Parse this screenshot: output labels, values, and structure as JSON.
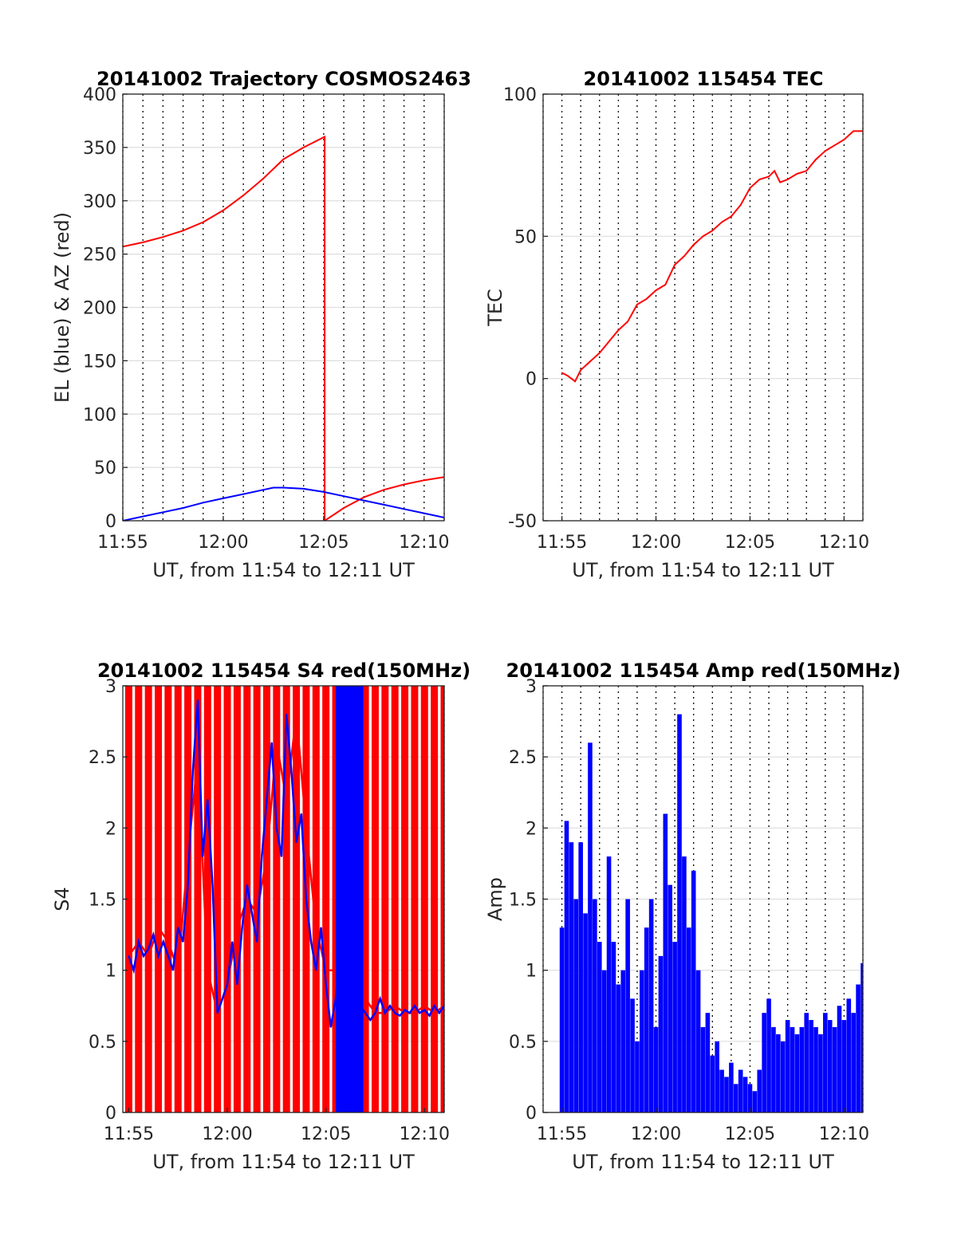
{
  "chart_data": [
    {
      "type": "line",
      "title": "20141002 Trajectory COSMOS2463",
      "xlabel": "UT, from 11:54 to 12:11 UT",
      "ylabel": "EL (blue) & AZ (red)",
      "x_unit": "minutes after 11:54 UT",
      "xlim": [
        1,
        17
      ],
      "ylim": [
        0,
        400
      ],
      "xticks": [
        {
          "value": 1,
          "label": "11:55"
        },
        {
          "value": 6,
          "label": "12:00"
        },
        {
          "value": 11,
          "label": "12:05"
        },
        {
          "value": 16,
          "label": "12:10"
        }
      ],
      "yticks": [
        0,
        50,
        100,
        150,
        200,
        250,
        300,
        350,
        400
      ],
      "grid": true,
      "series": [
        {
          "name": "AZ",
          "color": "#ff0000",
          "x": [
            1,
            2,
            3,
            4,
            5,
            6,
            7,
            8,
            9,
            10,
            11.05,
            11.05,
            12,
            13,
            14,
            15,
            16,
            17
          ],
          "y": [
            257,
            261,
            266,
            272,
            280,
            291,
            305,
            321,
            339,
            350,
            360,
            0,
            12,
            22,
            29,
            34,
            38,
            41
          ]
        },
        {
          "name": "EL",
          "color": "#0000ff",
          "x": [
            1,
            2,
            3,
            4,
            5,
            6,
            7,
            8,
            8.5,
            9,
            10,
            11,
            12,
            13,
            14,
            15,
            16,
            17
          ],
          "y": [
            0,
            4,
            8,
            12,
            17,
            21,
            25,
            29,
            31,
            31,
            30,
            27,
            23,
            19,
            15,
            11,
            7,
            3
          ]
        }
      ]
    },
    {
      "type": "line",
      "title": "20141002 115454 TEC",
      "xlabel": "UT, from 11:54 to 12:11 UT",
      "ylabel": "TEC",
      "x_unit": "minutes after 11:54 UT",
      "xlim": [
        0,
        17
      ],
      "ylim": [
        -50,
        100
      ],
      "xticks": [
        {
          "value": 1,
          "label": "11:55"
        },
        {
          "value": 6,
          "label": "12:00"
        },
        {
          "value": 11,
          "label": "12:05"
        },
        {
          "value": 16,
          "label": "12:10"
        }
      ],
      "yticks": [
        -50,
        0,
        50,
        100
      ],
      "grid": true,
      "series": [
        {
          "name": "TEC",
          "color": "#ff0000",
          "x": [
            1,
            1.3,
            1.5,
            1.7,
            2,
            2.5,
            3,
            3.5,
            4,
            4.5,
            5,
            5.5,
            6,
            6.5,
            7,
            7.5,
            8,
            8.5,
            9,
            9.5,
            10,
            10.5,
            11,
            11.5,
            12,
            12.3,
            12.6,
            13,
            13.5,
            14,
            14.5,
            15,
            15.5,
            16,
            16.5,
            17
          ],
          "y": [
            2,
            1,
            0,
            -1,
            3,
            6,
            9,
            13,
            17,
            20,
            26,
            28,
            31,
            33,
            40,
            43,
            47,
            50,
            52,
            55,
            57,
            61,
            67,
            70,
            71,
            73,
            69,
            70,
            72,
            73,
            77,
            80,
            82,
            84,
            87,
            87
          ]
        }
      ]
    },
    {
      "type": "line",
      "title": "20141002 115454 S4 red(150MHz)",
      "xlabel": "UT, from 11:54 to 12:11 UT",
      "ylabel": "S4",
      "x_unit": "minutes after 11:54 UT",
      "xlim": [
        0.7,
        17
      ],
      "ylim": [
        0,
        3
      ],
      "xticks": [
        {
          "value": 1,
          "label": "11:55"
        },
        {
          "value": 6,
          "label": "12:00"
        },
        {
          "value": 11,
          "label": "12:05"
        },
        {
          "value": 16,
          "label": "12:10"
        }
      ],
      "yticks": [
        0,
        0.5,
        1,
        1.5,
        2,
        2.5,
        3
      ],
      "ytick_labels": [
        "0",
        "0.5",
        "1",
        "1.5",
        "2",
        "2.5",
        "3"
      ],
      "grid": true,
      "series": [
        {
          "name": "",
          "color": "#ff0000",
          "x": [
            1,
            1.5,
            2,
            2.5,
            3,
            3.5,
            4,
            4.5,
            5,
            5.5,
            6,
            6.5,
            7,
            7.5,
            8,
            8.5,
            9,
            9.5,
            10,
            10.5,
            11,
            11.5,
            12,
            12.5,
            13,
            13.5,
            14,
            14.5,
            15,
            15.5,
            16,
            16.5,
            17
          ],
          "y": [
            1.1,
            1.2,
            1.1,
            1.3,
            1.2,
            1.0,
            1.8,
            2.5,
            1.0,
            0.7,
            0.9,
            1.3,
            1.5,
            1.4,
            1.8,
            2.6,
            2.2,
            2.8,
            2.0,
            1.3,
            1.0,
            1.0,
            0.9,
            0.8,
            0.8,
            0.7,
            0.7,
            0.75,
            0.7,
            0.7,
            0.75,
            0.7,
            0.75
          ],
          "fill_between": [
            0,
            3
          ]
        },
        {
          "name": "",
          "color": "#0000ff",
          "x": [
            1,
            1.25,
            1.5,
            1.75,
            2,
            2.25,
            2.5,
            2.75,
            3,
            3.25,
            3.5,
            3.75,
            4,
            4.25,
            4.5,
            4.75,
            5,
            5.25,
            5.5,
            5.75,
            6,
            6.25,
            6.5,
            6.75,
            7,
            7.25,
            7.5,
            7.75,
            8,
            8.25,
            8.5,
            8.75,
            9,
            9.25,
            9.5,
            9.75,
            10,
            10.25,
            10.5,
            10.75,
            11,
            11.25,
            11.5,
            11.75,
            12,
            12.25,
            12.5,
            12.75,
            13,
            13.25,
            13.5,
            13.75,
            14,
            14.25,
            14.5,
            14.75,
            15,
            15.25,
            15.5,
            15.75,
            16,
            16.25,
            16.5,
            16.75,
            17
          ],
          "y": [
            1.1,
            1.0,
            1.2,
            1.1,
            1.15,
            1.25,
            1.1,
            1.2,
            1.1,
            1.0,
            1.3,
            1.2,
            1.6,
            2.4,
            2.9,
            1.8,
            2.2,
            1.6,
            0.7,
            0.8,
            0.9,
            1.2,
            0.9,
            1.3,
            1.6,
            1.4,
            1.2,
            1.8,
            2.2,
            2.6,
            2.0,
            1.8,
            2.8,
            2.4,
            1.9,
            2.1,
            1.5,
            1.2,
            1.0,
            1.3,
            0.9,
            0.6,
            0.8,
            1.2,
            0.8,
            0.6,
            0.8,
            0.75,
            0.7,
            0.65,
            0.7,
            0.8,
            0.7,
            0.75,
            0.7,
            0.68,
            0.72,
            0.7,
            0.75,
            0.7,
            0.72,
            0.68,
            0.75,
            0.7,
            0.75
          ],
          "fill_between_x": [
            11.5,
            12.9
          ]
        }
      ]
    },
    {
      "type": "bar",
      "title": "20141002 115454 Amp red(150MHz)",
      "xlabel": "UT, from 11:54 to 12:11 UT",
      "ylabel": "Amp",
      "x_unit": "minutes after 11:54 UT",
      "xlim": [
        0,
        17
      ],
      "ylim": [
        0,
        3
      ],
      "xticks": [
        {
          "value": 1,
          "label": "11:55"
        },
        {
          "value": 6,
          "label": "12:00"
        },
        {
          "value": 11,
          "label": "12:05"
        },
        {
          "value": 16,
          "label": "12:10"
        }
      ],
      "yticks": [
        0,
        0.5,
        1,
        1.5,
        2,
        2.5,
        3
      ],
      "ytick_labels": [
        "0",
        "0.5",
        "1",
        "1.5",
        "2",
        "2.5",
        "3"
      ],
      "grid": true,
      "series": [
        {
          "name": "Amp",
          "color": "#0000ff",
          "x": [
            1,
            1.25,
            1.5,
            1.75,
            2,
            2.25,
            2.5,
            2.75,
            3,
            3.25,
            3.5,
            3.75,
            4,
            4.25,
            4.5,
            4.75,
            5,
            5.25,
            5.5,
            5.75,
            6,
            6.25,
            6.5,
            6.75,
            7,
            7.25,
            7.5,
            7.75,
            8,
            8.25,
            8.5,
            8.75,
            9,
            9.25,
            9.5,
            9.75,
            10,
            10.25,
            10.5,
            10.75,
            11,
            11.25,
            11.5,
            11.75,
            12,
            12.25,
            12.5,
            12.75,
            13,
            13.25,
            13.5,
            13.75,
            14,
            14.25,
            14.5,
            14.75,
            15,
            15.25,
            15.5,
            15.75,
            16,
            16.25,
            16.5,
            16.75,
            17
          ],
          "y": [
            1.3,
            2.05,
            1.9,
            1.5,
            1.9,
            1.4,
            2.6,
            1.5,
            1.2,
            1.0,
            1.8,
            1.2,
            0.9,
            1.0,
            1.5,
            0.8,
            0.5,
            1.0,
            1.3,
            1.5,
            0.6,
            1.1,
            2.1,
            1.6,
            1.2,
            2.8,
            1.8,
            1.3,
            1.7,
            1.0,
            0.6,
            0.7,
            0.4,
            0.5,
            0.3,
            0.25,
            0.35,
            0.2,
            0.3,
            0.25,
            0.2,
            0.15,
            0.3,
            0.7,
            0.8,
            0.6,
            0.55,
            0.5,
            0.65,
            0.6,
            0.55,
            0.6,
            0.7,
            0.65,
            0.6,
            0.55,
            0.7,
            0.65,
            0.6,
            0.75,
            0.65,
            0.8,
            0.7,
            0.9,
            1.05
          ]
        }
      ]
    }
  ]
}
